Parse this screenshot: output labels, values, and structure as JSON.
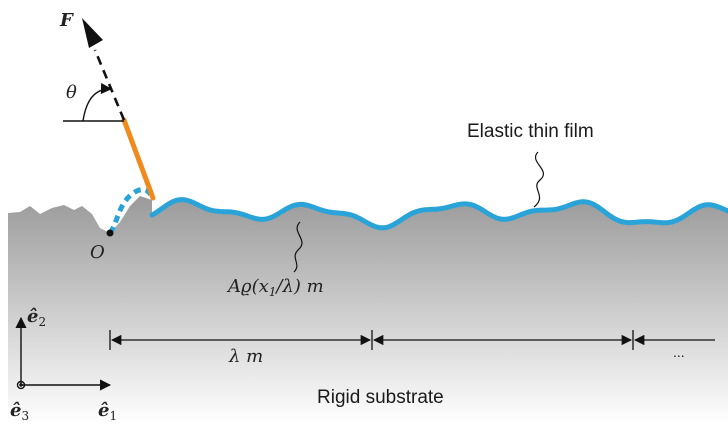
{
  "labels": {
    "force": "F",
    "angle": "θ",
    "film": "Elastic thin film",
    "origin": "O",
    "profile_prefix": "A",
    "profile_func": "ϱ(x",
    "profile_sub": "1",
    "profile_mid": "/λ) ",
    "profile_unit": "m",
    "period_symbol": "λ ",
    "period_unit": "m",
    "ellipsis": "...",
    "substrate": "Rigid substrate",
    "axis_e2": "ê",
    "axis_e2_sub": "2",
    "axis_e1": "ê",
    "axis_e1_sub": "1",
    "axis_e3": "ê",
    "axis_e3_sub": "3"
  },
  "colors": {
    "film": "#2aa4d8",
    "peeled_film": "#f08a1c",
    "force_arrow": "#111111",
    "substrate_top": "#9a9a9a",
    "substrate_bottom": "#ffffff"
  }
}
